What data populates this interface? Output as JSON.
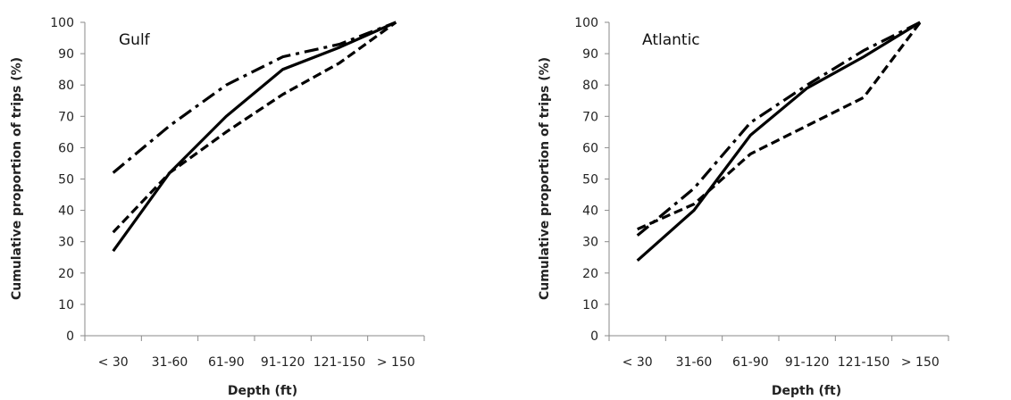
{
  "chart_data": [
    {
      "type": "line",
      "title": "",
      "annotation": "Gulf",
      "xlabel": "Depth (ft)",
      "ylabel": "Cumulative proportion of trips  (%)",
      "categories": [
        "< 30",
        "31-60",
        "61-90",
        "91-120",
        "121-150",
        "> 150"
      ],
      "ylim": [
        0,
        100
      ],
      "yticks": [
        0,
        10,
        20,
        30,
        40,
        50,
        60,
        70,
        80,
        90,
        100
      ],
      "grid": false,
      "legend": "none",
      "series": [
        {
          "style": "solid",
          "values": [
            27,
            52,
            70,
            85,
            92,
            100
          ]
        },
        {
          "style": "dashed",
          "values": [
            33,
            52,
            65,
            77,
            87,
            100
          ]
        },
        {
          "style": "dash-dot",
          "values": [
            52,
            67,
            80,
            89,
            93,
            100
          ]
        }
      ]
    },
    {
      "type": "line",
      "title": "",
      "annotation": "Atlantic",
      "xlabel": "Depth (ft)",
      "ylabel": "Cumulative proportion of trips  (%)",
      "categories": [
        "< 30",
        "31-60",
        "61-90",
        "91-120",
        "121-150",
        "> 150"
      ],
      "ylim": [
        0,
        100
      ],
      "yticks": [
        0,
        10,
        20,
        30,
        40,
        50,
        60,
        70,
        80,
        90,
        100
      ],
      "grid": false,
      "legend": "none",
      "series": [
        {
          "style": "solid",
          "values": [
            24,
            40,
            64,
            79,
            89,
            100
          ]
        },
        {
          "style": "dashed",
          "values": [
            34,
            42,
            58,
            67,
            76,
            100
          ]
        },
        {
          "style": "dash-dot",
          "values": [
            32,
            47,
            68,
            80,
            91,
            100
          ]
        }
      ]
    }
  ],
  "colors": {
    "line": "#000000",
    "axis": "#8a8a8a",
    "text": "#222222"
  }
}
